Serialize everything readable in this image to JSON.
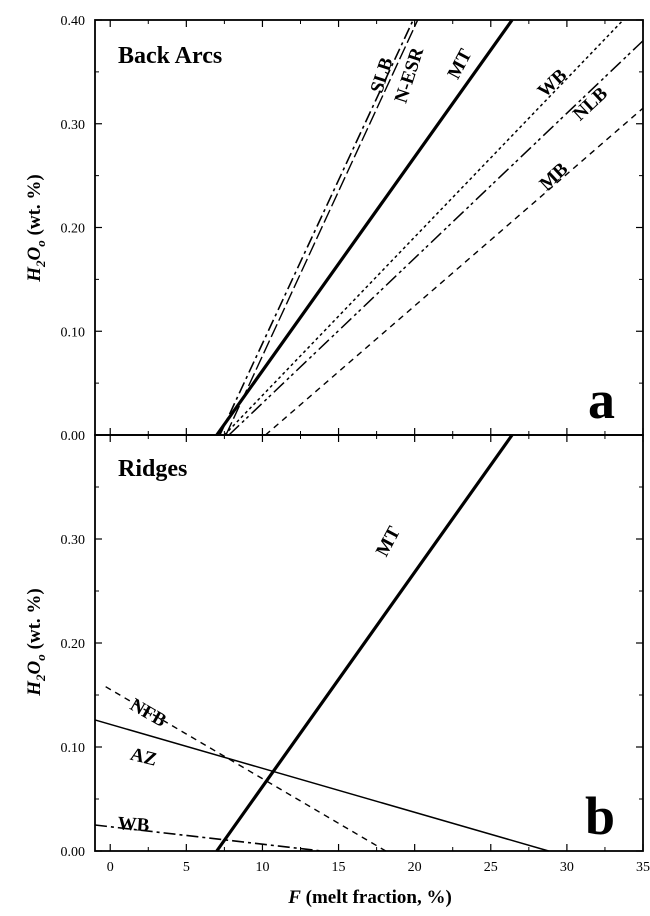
{
  "chart_data": [
    {
      "type": "line",
      "panel": "a",
      "title": "Back Arcs",
      "xlabel_italic": "F",
      "xlabel_rest": " (melt fraction, %)",
      "ylabel_main": "H",
      "ylabel_sub": "2",
      "ylabel_main2": "O",
      "ylabel_sub2": "o",
      "ylabel_rest": " (wt. %)",
      "xlim": [
        -1,
        35
      ],
      "ylim": [
        0,
        0.4
      ],
      "yticks": [
        "0.00",
        "0.10",
        "0.20",
        "0.30",
        "0.40"
      ],
      "series": [
        {
          "name": "SLB",
          "x": [
            7.2,
            19.9
          ],
          "y": [
            0,
            0.4
          ],
          "color": "#000000",
          "style": "dashdot"
        },
        {
          "name": "N-ESR",
          "x": [
            7.6,
            20.2
          ],
          "y": [
            0,
            0.4
          ],
          "color": "#000000",
          "style": "longdash"
        },
        {
          "name": "MT",
          "x": [
            7.0,
            26.4
          ],
          "y": [
            0,
            0.4
          ],
          "color": "#000000",
          "style": "thick"
        },
        {
          "name": "WB",
          "x": [
            7.5,
            33.7
          ],
          "y": [
            0,
            0.4
          ],
          "color": "#000000",
          "style": "dotted"
        },
        {
          "name": "NLB",
          "x": [
            7.8,
            35.0
          ],
          "y": [
            0,
            0.38
          ],
          "color": "#000000",
          "style": "dashdotdot"
        },
        {
          "name": "MB",
          "x": [
            10.2,
            35.0
          ],
          "y": [
            0,
            0.315
          ],
          "color": "#000000",
          "style": "dashed"
        }
      ],
      "label_rows": [
        {
          "text": "SLB",
          "x": 18.2,
          "y": 0.345,
          "rot": -72
        },
        {
          "text": "N-ESR",
          "x": 20.0,
          "y": 0.345,
          "rot": -72
        },
        {
          "text": "MT",
          "x": 23.3,
          "y": 0.355,
          "rot": -62
        },
        {
          "text": "WB",
          "x": 29.3,
          "y": 0.335,
          "rot": -43
        },
        {
          "text": "NLB",
          "x": 31.8,
          "y": 0.315,
          "rot": -43
        },
        {
          "text": "MB",
          "x": 29.4,
          "y": 0.245,
          "rot": -43
        }
      ],
      "panel_letter": "a"
    },
    {
      "type": "line",
      "panel": "b",
      "title": "Ridges",
      "xlim": [
        -1,
        35
      ],
      "ylim": [
        0,
        0.4
      ],
      "xticks": [
        "0",
        "5",
        "10",
        "15",
        "20",
        "25",
        "30",
        "35"
      ],
      "yticks": [
        "0.00",
        "0.10",
        "0.20",
        "0.30"
      ],
      "series": [
        {
          "name": "MT",
          "x": [
            7.0,
            26.4
          ],
          "y": [
            0,
            0.4
          ],
          "color": "#000000",
          "style": "thick"
        },
        {
          "name": "NFB",
          "x": [
            -0.3,
            18.1
          ],
          "y": [
            0.158,
            0
          ],
          "color": "#000000",
          "style": "dashed"
        },
        {
          "name": "AZ",
          "x": [
            -1.0,
            28.8
          ],
          "y": [
            0.126,
            0
          ],
          "color": "#000000",
          "style": "solid"
        },
        {
          "name": "WB",
          "x": [
            -1.0,
            13.9
          ],
          "y": [
            0.025,
            0
          ],
          "color": "#000000",
          "style": "dashdot"
        }
      ],
      "label_rows": [
        {
          "text": "MT",
          "x": 18.6,
          "y": 0.295,
          "rot": -62
        },
        {
          "text": "NFB",
          "x": 2.3,
          "y": 0.128,
          "rot": 30
        },
        {
          "text": "AZ",
          "x": 2.1,
          "y": 0.085,
          "rot": 14
        },
        {
          "text": "WB",
          "x": 1.5,
          "y": 0.02,
          "rot": 4
        }
      ],
      "panel_letter": "b"
    }
  ]
}
